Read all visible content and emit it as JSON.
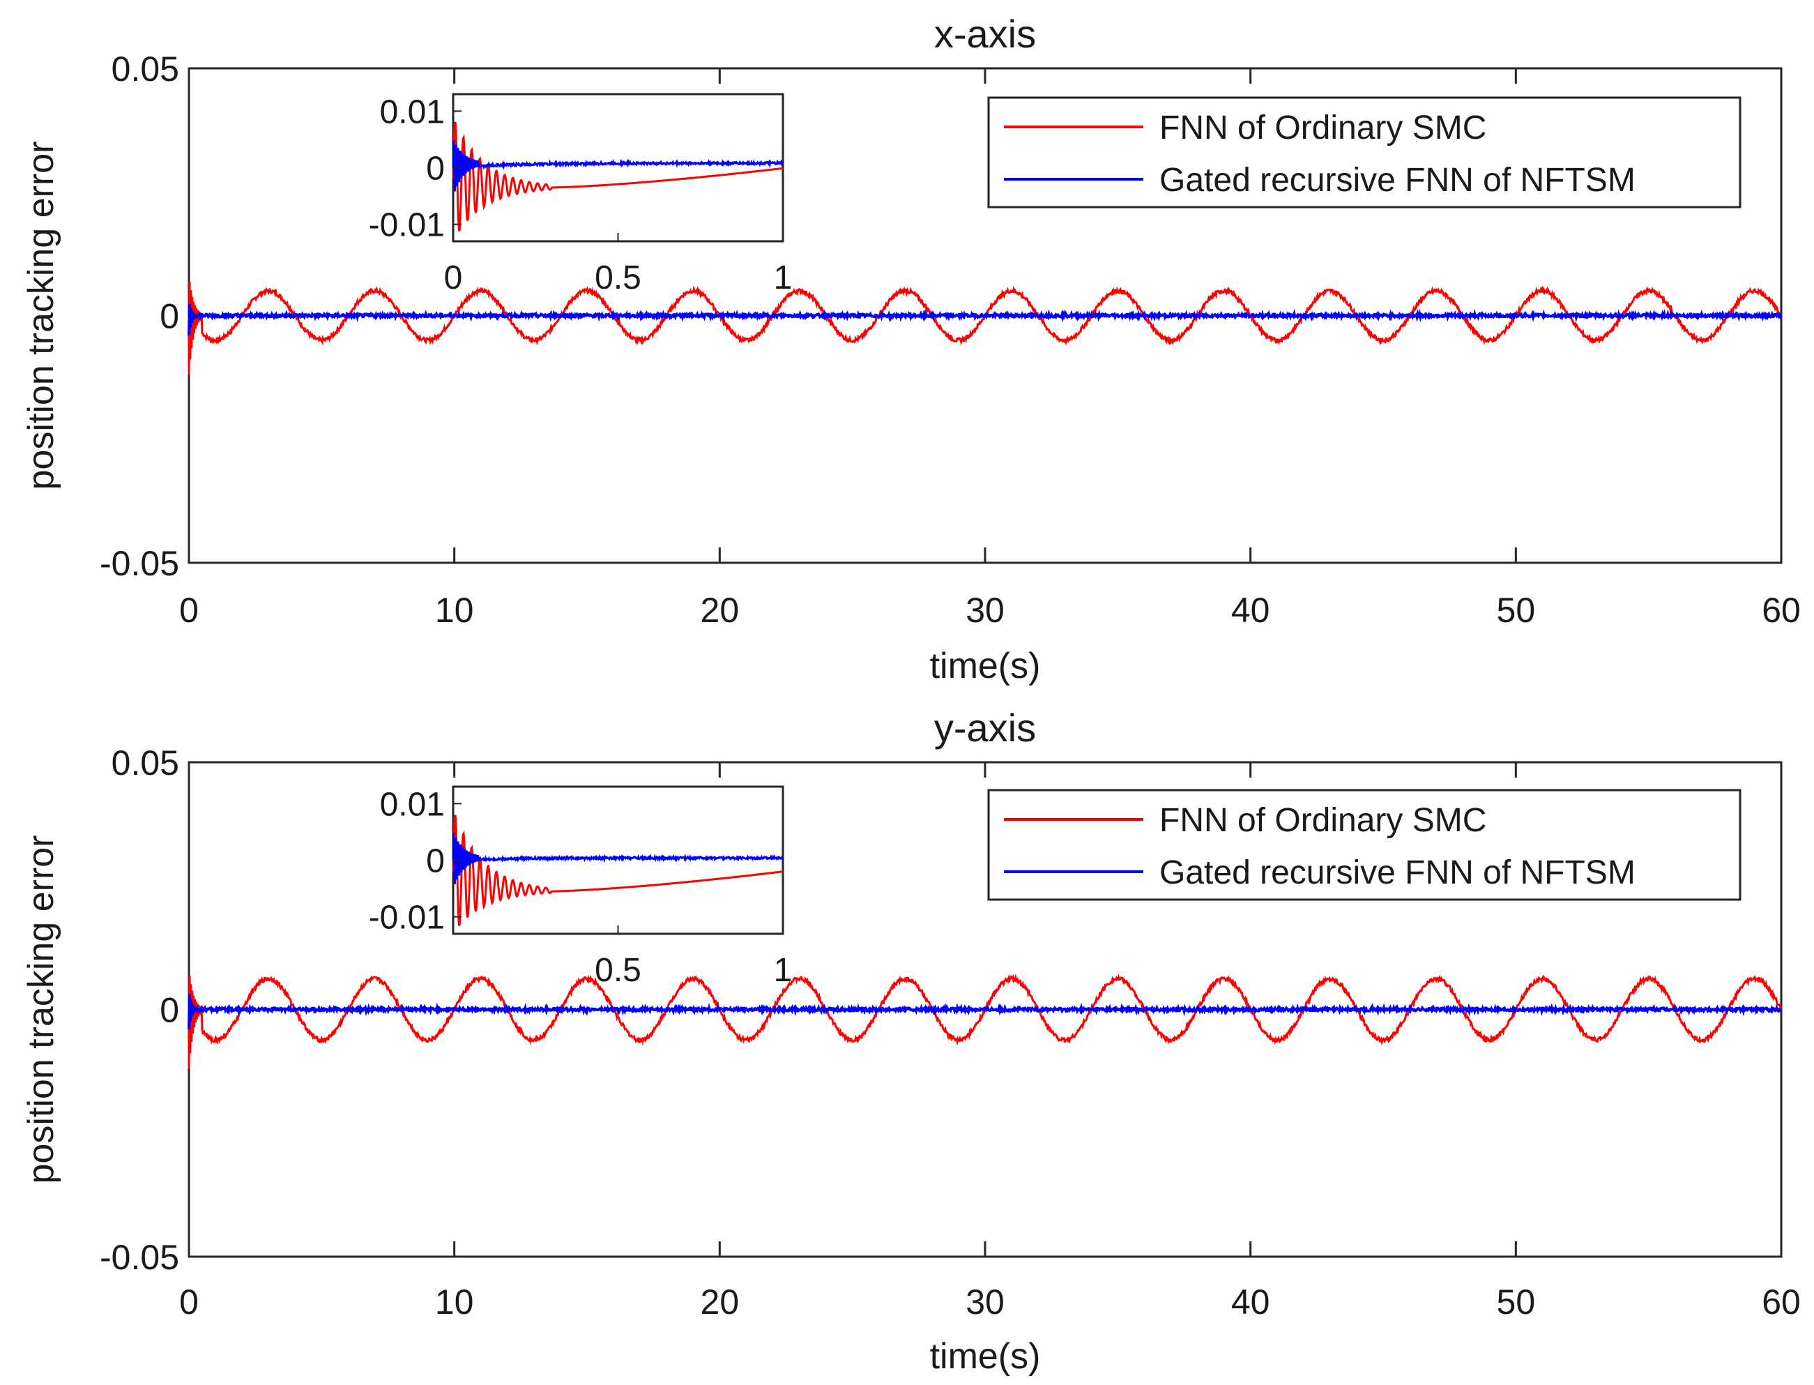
{
  "chart_data": [
    {
      "type": "line",
      "title": "x-axis",
      "xlabel": "time(s)",
      "ylabel": "position tracking error",
      "xlim": [
        0,
        60
      ],
      "ylim": [
        -0.05,
        0.05
      ],
      "xticks": [
        "0",
        "10",
        "20",
        "30",
        "40",
        "50",
        "60"
      ],
      "yticks": [
        "0.05",
        "0",
        "-0.05"
      ],
      "legend": {
        "position": "top-right",
        "entries": [
          "FNN of Ordinary SMC",
          "Gated recursive FNN of NFTSM"
        ]
      },
      "series": [
        {
          "name": "FNN of Ordinary SMC",
          "color": "#ff0000",
          "description": "sinusoidal",
          "amplitude": 0.005,
          "period": 4,
          "offset": 0,
          "initial_transient": {
            "min": -0.012,
            "max": 0.008
          }
        },
        {
          "name": "Gated recursive FNN of NFTSM",
          "color": "#0000ff",
          "amplitude": 0.0003,
          "offset": 0,
          "initial_transient": {
            "min": -0.004,
            "max": 0.003
          }
        }
      ],
      "inset": {
        "xlim": [
          0,
          1
        ],
        "ylim": [
          -0.013,
          0.013
        ],
        "xticks": [
          "0",
          "0.5",
          "1"
        ],
        "yticks": [
          "0.01",
          "0",
          "-0.01"
        ],
        "red_final_value": -0.0001,
        "red_min_value": -0.0035,
        "blue_final_value": 0.0008
      }
    },
    {
      "type": "line",
      "title": "y-axis",
      "xlabel": "time(s)",
      "ylabel": "position tracking error",
      "xlim": [
        0,
        60
      ],
      "ylim": [
        -0.05,
        0.05
      ],
      "xticks": [
        "0",
        "10",
        "20",
        "30",
        "40",
        "50",
        "60"
      ],
      "yticks": [
        "0.05",
        "0",
        "-0.05"
      ],
      "legend": {
        "position": "top-right",
        "entries": [
          "FNN of Ordinary SMC",
          "Gated recursive FNN of NFTSM"
        ]
      },
      "series": [
        {
          "name": "FNN of Ordinary SMC",
          "color": "#ff0000",
          "amplitude": 0.0062,
          "period": 4,
          "offset": 0,
          "initial_transient": {
            "min": -0.012,
            "max": 0.008
          }
        },
        {
          "name": "Gated recursive FNN of NFTSM",
          "color": "#0000ff",
          "amplitude": 0.0003,
          "offset": 0,
          "initial_transient": {
            "min": -0.004,
            "max": 0.004
          }
        }
      ],
      "inset": {
        "xlim": [
          0,
          1
        ],
        "ylim": [
          -0.013,
          0.013
        ],
        "xticks": [
          "",
          "0.5",
          "1"
        ],
        "yticks": [
          "0.01",
          "0",
          "-0.01"
        ],
        "red_final_value": -0.002,
        "red_min_value": -0.0055,
        "blue_final_value": 0.0004
      }
    }
  ]
}
